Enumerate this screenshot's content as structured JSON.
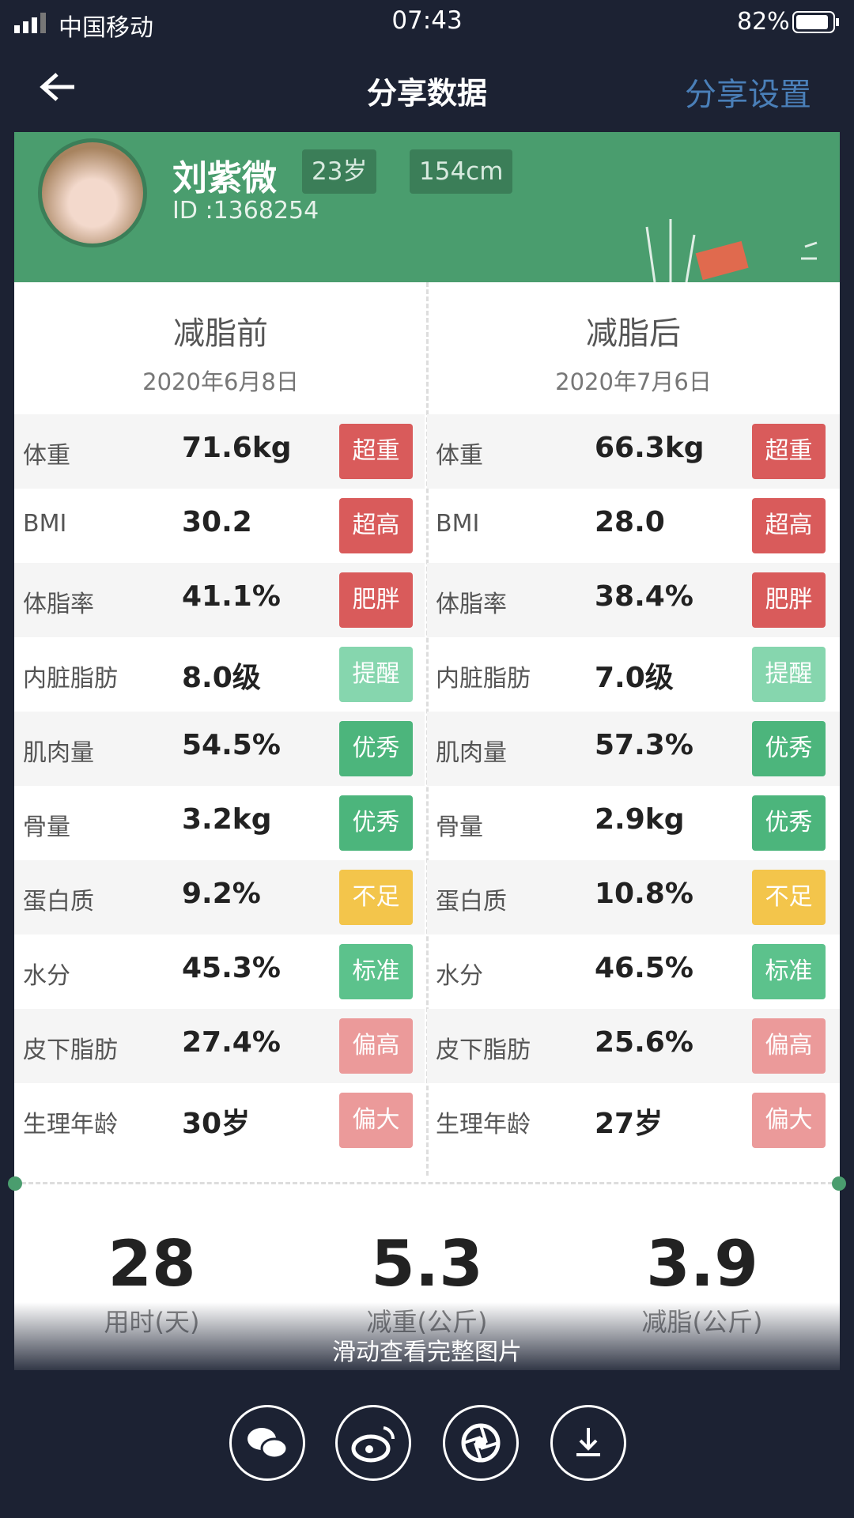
{
  "status_bar": {
    "carrier": "中国移动",
    "time": "07:43",
    "battery": "82%"
  },
  "nav": {
    "title": "分享数据",
    "action": "分享设置"
  },
  "profile": {
    "name": "刘紫微",
    "age": "23岁",
    "height": "154cm",
    "id": "ID :1368254"
  },
  "columns": [
    {
      "title": "减脂前",
      "date": "2020年6月8日",
      "rows": [
        {
          "label": "体重",
          "value": "71.6kg",
          "tag": "超重",
          "tag_color": "#d95b5b"
        },
        {
          "label": "BMI",
          "value": "30.2",
          "tag": "超高",
          "tag_color": "#d95b5b"
        },
        {
          "label": "体脂率",
          "value": "41.1%",
          "tag": "肥胖",
          "tag_color": "#d95b5b"
        },
        {
          "label": "内脏脂肪",
          "value": "8.0级",
          "tag": "提醒",
          "tag_color": "#86d6ae"
        },
        {
          "label": "肌肉量",
          "value": "54.5%",
          "tag": "优秀",
          "tag_color": "#4cb57c"
        },
        {
          "label": "骨量",
          "value": "3.2kg",
          "tag": "优秀",
          "tag_color": "#4cb57c"
        },
        {
          "label": "蛋白质",
          "value": "9.2%",
          "tag": "不足",
          "tag_color": "#f3c54b"
        },
        {
          "label": "水分",
          "value": "45.3%",
          "tag": "标准",
          "tag_color": "#5cc28c"
        },
        {
          "label": "皮下脂肪",
          "value": "27.4%",
          "tag": "偏高",
          "tag_color": "#eb9a9a"
        },
        {
          "label": "生理年龄",
          "value": "30岁",
          "tag": "偏大",
          "tag_color": "#eb9a9a"
        }
      ]
    },
    {
      "title": "减脂后",
      "date": "2020年7月6日",
      "rows": [
        {
          "label": "体重",
          "value": "66.3kg",
          "tag": "超重",
          "tag_color": "#d95b5b"
        },
        {
          "label": "BMI",
          "value": "28.0",
          "tag": "超高",
          "tag_color": "#d95b5b"
        },
        {
          "label": "体脂率",
          "value": "38.4%",
          "tag": "肥胖",
          "tag_color": "#d95b5b"
        },
        {
          "label": "内脏脂肪",
          "value": "7.0级",
          "tag": "提醒",
          "tag_color": "#86d6ae"
        },
        {
          "label": "肌肉量",
          "value": "57.3%",
          "tag": "优秀",
          "tag_color": "#4cb57c"
        },
        {
          "label": "骨量",
          "value": "2.9kg",
          "tag": "优秀",
          "tag_color": "#4cb57c"
        },
        {
          "label": "蛋白质",
          "value": "10.8%",
          "tag": "不足",
          "tag_color": "#f3c54b"
        },
        {
          "label": "水分",
          "value": "46.5%",
          "tag": "标准",
          "tag_color": "#5cc28c"
        },
        {
          "label": "皮下脂肪",
          "value": "25.6%",
          "tag": "偏高",
          "tag_color": "#eb9a9a"
        },
        {
          "label": "生理年龄",
          "value": "27岁",
          "tag": "偏大",
          "tag_color": "#eb9a9a"
        }
      ]
    }
  ],
  "summary": [
    {
      "value": 28,
      "label": "用时(天)"
    },
    {
      "value": 5.3,
      "label": "减重(公斤)"
    },
    {
      "value": 3.9,
      "label": "减脂(公斤)"
    }
  ],
  "hint": "滑动查看完整图片"
}
